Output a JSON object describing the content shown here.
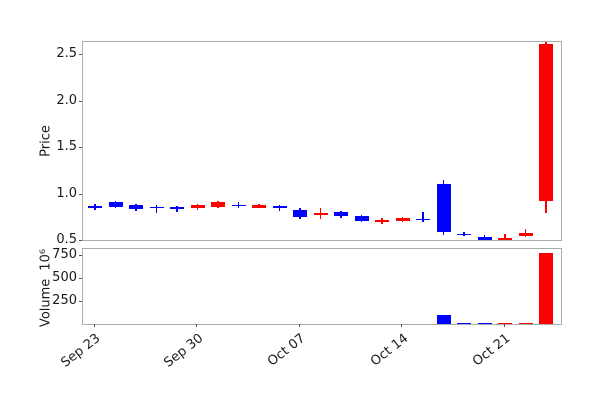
{
  "figure": {
    "background": "#ffffff",
    "axis_border_color": "#a9acb0",
    "tick_color": "#555555",
    "text_color": "#1a1a1a"
  },
  "chart_data": {
    "type": "candlestick",
    "title": "",
    "legend": null,
    "grid": false,
    "colors": {
      "up": "#ff0000",
      "down": "#0000ff"
    },
    "price_panel": {
      "ylabel": "Price",
      "ylim": [
        0.5,
        2.64
      ],
      "yticks": [
        0.5,
        1.0,
        1.5,
        2.0,
        2.5
      ],
      "ytick_labels": [
        "0.5",
        "1.0",
        "1.5",
        "2.0",
        "2.5"
      ]
    },
    "volume_panel": {
      "ylabel": "Volume",
      "unit_multiplier": "10⁶",
      "unit": 1000000,
      "ylim": [
        0,
        830
      ],
      "yticks": [
        250,
        500,
        750
      ],
      "ytick_labels": [
        "250",
        "500",
        "750"
      ]
    },
    "x_axis": {
      "tick_labels": [
        "Sep 23",
        "Sep 30",
        "Oct 07",
        "Oct 14",
        "Oct 21"
      ],
      "tick_candle_indices": [
        0,
        5,
        10,
        15,
        20
      ],
      "label_rotation_deg": 38
    },
    "candles": [
      {
        "date": "Sep 23",
        "open": 0.875,
        "high": 0.9,
        "low": 0.83,
        "close": 0.865,
        "volume": 2
      },
      {
        "date": "Sep 24",
        "open": 0.92,
        "high": 0.93,
        "low": 0.86,
        "close": 0.87,
        "volume": 3
      },
      {
        "date": "Sep 25",
        "open": 0.89,
        "high": 0.9,
        "low": 0.82,
        "close": 0.84,
        "volume": 3
      },
      {
        "date": "Sep 26",
        "open": 0.87,
        "high": 0.89,
        "low": 0.8,
        "close": 0.85,
        "volume": 2
      },
      {
        "date": "Sep 27",
        "open": 0.862,
        "high": 0.875,
        "low": 0.81,
        "close": 0.852,
        "volume": 2
      },
      {
        "date": "Sep 30",
        "open": 0.85,
        "high": 0.9,
        "low": 0.83,
        "close": 0.89,
        "volume": 3
      },
      {
        "date": "Oct 01",
        "open": 0.87,
        "high": 0.93,
        "low": 0.86,
        "close": 0.92,
        "volume": 4
      },
      {
        "date": "Oct 02",
        "open": 0.89,
        "high": 0.92,
        "low": 0.85,
        "close": 0.875,
        "volume": 3
      },
      {
        "date": "Oct 03",
        "open": 0.86,
        "high": 0.9,
        "low": 0.85,
        "close": 0.89,
        "volume": 3
      },
      {
        "date": "Oct 04",
        "open": 0.88,
        "high": 0.89,
        "low": 0.82,
        "close": 0.85,
        "volume": 2
      },
      {
        "date": "Oct 07",
        "open": 0.83,
        "high": 0.85,
        "low": 0.74,
        "close": 0.76,
        "volume": 5
      },
      {
        "date": "Oct 08",
        "open": 0.78,
        "high": 0.85,
        "low": 0.74,
        "close": 0.8,
        "volume": 4
      },
      {
        "date": "Oct 09",
        "open": 0.81,
        "high": 0.82,
        "low": 0.75,
        "close": 0.77,
        "volume": 3
      },
      {
        "date": "Oct 10",
        "open": 0.77,
        "high": 0.78,
        "low": 0.7,
        "close": 0.72,
        "volume": 4
      },
      {
        "date": "Oct 11",
        "open": 0.7,
        "high": 0.745,
        "low": 0.68,
        "close": 0.73,
        "volume": 3
      },
      {
        "date": "Oct 14",
        "open": 0.71,
        "high": 0.76,
        "low": 0.7,
        "close": 0.745,
        "volume": 4
      },
      {
        "date": "Oct 15",
        "open": 0.737,
        "high": 0.81,
        "low": 0.7,
        "close": 0.728,
        "volume": 5
      },
      {
        "date": "Oct 16",
        "open": 1.11,
        "high": 1.16,
        "low": 0.56,
        "close": 0.6,
        "volume": 100
      },
      {
        "date": "Oct 17",
        "open": 0.58,
        "high": 0.6,
        "low": 0.55,
        "close": 0.56,
        "volume": 8
      },
      {
        "date": "Oct 18",
        "open": 0.54,
        "high": 0.56,
        "low": 0.5,
        "close": 0.51,
        "volume": 6
      },
      {
        "date": "Oct 21",
        "open": 0.5,
        "high": 0.57,
        "low": 0.49,
        "close": 0.53,
        "volume": 7
      },
      {
        "date": "Oct 22",
        "open": 0.55,
        "high": 0.63,
        "low": 0.54,
        "close": 0.59,
        "volume": 10
      },
      {
        "date": "Oct 23",
        "open": 0.93,
        "high": 2.64,
        "low": 0.8,
        "close": 2.62,
        "volume": 780
      }
    ]
  }
}
